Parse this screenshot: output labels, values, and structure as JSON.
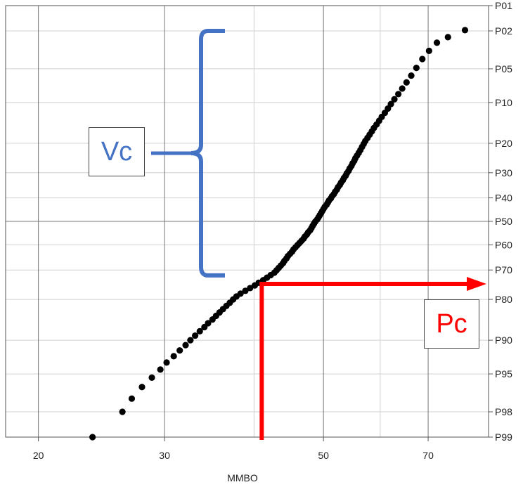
{
  "chart_data": {
    "type": "scatter",
    "title": "",
    "xlabel": "MMBO",
    "ylabel": "",
    "x_scale": "log",
    "y_scale": "probability",
    "xlim": [
      18,
      85
    ],
    "x_ticks": [
      20,
      30,
      50,
      70
    ],
    "x_minor": [
      40,
      60
    ],
    "y_ticks": [
      {
        "label": "P01",
        "p": 1
      },
      {
        "label": "P02",
        "p": 2
      },
      {
        "label": "P05",
        "p": 5
      },
      {
        "label": "P10",
        "p": 10
      },
      {
        "label": "P20",
        "p": 20
      },
      {
        "label": "P30",
        "p": 30
      },
      {
        "label": "P40",
        "p": 40
      },
      {
        "label": "P50",
        "p": 50
      },
      {
        "label": "P60",
        "p": 60
      },
      {
        "label": "P70",
        "p": 70
      },
      {
        "label": "P80",
        "p": 80
      },
      {
        "label": "P90",
        "p": 90
      },
      {
        "label": "P95",
        "p": 95
      },
      {
        "label": "P98",
        "p": 98
      },
      {
        "label": "P99",
        "p": 99
      }
    ],
    "points": [
      [
        23.8,
        99.0
      ],
      [
        26.2,
        98.0
      ],
      [
        27.0,
        97.2
      ],
      [
        27.9,
        96.3
      ],
      [
        28.8,
        95.4
      ],
      [
        29.6,
        94.5
      ],
      [
        30.2,
        93.6
      ],
      [
        30.9,
        92.7
      ],
      [
        31.5,
        91.8
      ],
      [
        32.1,
        90.9
      ],
      [
        32.6,
        90.0
      ],
      [
        33.1,
        89.1
      ],
      [
        33.6,
        88.2
      ],
      [
        34.1,
        87.3
      ],
      [
        34.5,
        86.4
      ],
      [
        35.0,
        85.5
      ],
      [
        35.4,
        84.6
      ],
      [
        35.8,
        83.7
      ],
      [
        36.2,
        82.8
      ],
      [
        36.6,
        81.9
      ],
      [
        37.0,
        81.0
      ],
      [
        37.4,
        80.0
      ],
      [
        37.8,
        79.1
      ],
      [
        38.3,
        78.2
      ],
      [
        38.9,
        77.3
      ],
      [
        39.5,
        76.4
      ],
      [
        40.1,
        75.5
      ],
      [
        40.6,
        74.6
      ],
      [
        41.2,
        73.7
      ],
      [
        41.7,
        72.8
      ],
      [
        42.2,
        71.9
      ],
      [
        42.7,
        71.0
      ],
      [
        43.0,
        70.1
      ],
      [
        43.3,
        69.2
      ],
      [
        43.6,
        68.3
      ],
      [
        43.9,
        67.4
      ],
      [
        44.1,
        66.5
      ],
      [
        44.4,
        65.5
      ],
      [
        44.6,
        64.6
      ],
      [
        44.9,
        63.7
      ],
      [
        45.2,
        62.8
      ],
      [
        45.4,
        61.9
      ],
      [
        45.7,
        61.0
      ],
      [
        46.0,
        60.1
      ],
      [
        46.3,
        59.2
      ],
      [
        46.6,
        58.3
      ],
      [
        46.9,
        57.4
      ],
      [
        47.1,
        56.5
      ],
      [
        47.4,
        55.6
      ],
      [
        47.6,
        54.7
      ],
      [
        47.9,
        53.8
      ],
      [
        48.1,
        52.9
      ],
      [
        48.3,
        51.9
      ],
      [
        48.5,
        51.0
      ],
      [
        48.7,
        50.1
      ],
      [
        49.0,
        49.2
      ],
      [
        49.2,
        48.3
      ],
      [
        49.4,
        47.4
      ],
      [
        49.6,
        46.5
      ],
      [
        49.8,
        45.6
      ],
      [
        50.0,
        44.7
      ],
      [
        50.2,
        43.8
      ],
      [
        50.5,
        42.9
      ],
      [
        50.7,
        42.0
      ],
      [
        50.9,
        41.1
      ],
      [
        51.2,
        40.2
      ],
      [
        51.4,
        39.3
      ],
      [
        51.7,
        38.4
      ],
      [
        51.9,
        37.5
      ],
      [
        52.2,
        36.6
      ],
      [
        52.4,
        35.6
      ],
      [
        52.7,
        34.7
      ],
      [
        52.9,
        33.8
      ],
      [
        53.2,
        32.9
      ],
      [
        53.4,
        32.0
      ],
      [
        53.7,
        31.1
      ],
      [
        53.9,
        30.2
      ],
      [
        54.2,
        29.3
      ],
      [
        54.4,
        28.4
      ],
      [
        54.7,
        27.5
      ],
      [
        54.9,
        26.6
      ],
      [
        55.2,
        25.7
      ],
      [
        55.4,
        24.8
      ],
      [
        55.7,
        23.9
      ],
      [
        56.0,
        23.0
      ],
      [
        56.3,
        22.1
      ],
      [
        56.6,
        21.1
      ],
      [
        56.9,
        20.2
      ],
      [
        57.2,
        19.3
      ],
      [
        57.6,
        18.4
      ],
      [
        58.0,
        17.5
      ],
      [
        58.4,
        16.6
      ],
      [
        58.8,
        15.7
      ],
      [
        59.3,
        14.8
      ],
      [
        59.8,
        13.9
      ],
      [
        60.3,
        13.0
      ],
      [
        60.9,
        12.1
      ],
      [
        61.5,
        11.2
      ],
      [
        62.1,
        10.3
      ],
      [
        62.8,
        9.4
      ],
      [
        63.6,
        8.5
      ],
      [
        64.4,
        7.6
      ],
      [
        65.3,
        6.7
      ],
      [
        66.3,
        5.8
      ],
      [
        67.4,
        4.9
      ],
      [
        68.7,
        4.0
      ],
      [
        70.2,
        3.3
      ],
      [
        72.0,
        2.7
      ],
      [
        74.6,
        2.35
      ],
      [
        78.8,
        1.96
      ]
    ],
    "annotations": {
      "vc": {
        "label": "Vc",
        "color": "#4472C4",
        "p_top": 2,
        "p_bottom": 72
      },
      "pc": {
        "label": "Pc",
        "color": "#FF0000",
        "x": 41,
        "p": 75
      }
    }
  }
}
